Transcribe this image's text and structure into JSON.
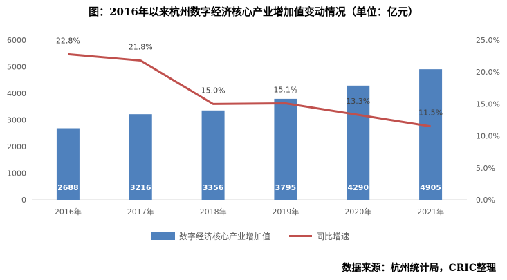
{
  "title": "图：2016年以来杭州数字经济核心产业增加值变动情况（单位：亿元）",
  "source": "数据来源：杭州统计局，CRIC整理",
  "chart_data": {
    "type": "bar",
    "categories": [
      "2016年",
      "2017年",
      "2018年",
      "2019年",
      "2020年",
      "2021年"
    ],
    "series": [
      {
        "name": "数字经济核心产业增加值",
        "type": "bar",
        "axis": "left",
        "color": "#4F81BD",
        "values": [
          2688,
          3216,
          3356,
          3795,
          4290,
          4905
        ],
        "labels": [
          "2688",
          "3216",
          "3356",
          "3795",
          "4290",
          "4905"
        ]
      },
      {
        "name": "同比增速",
        "type": "line",
        "axis": "right",
        "color": "#C0504D",
        "values": [
          22.8,
          21.8,
          15.0,
          15.1,
          13.3,
          11.5
        ],
        "labels": [
          "22.8%",
          "21.8%",
          "15.0%",
          "15.1%",
          "13.3%",
          "11.5%"
        ]
      }
    ],
    "y_left": {
      "min": 0,
      "max": 6000,
      "ticks": [
        "0",
        "1000",
        "2000",
        "3000",
        "4000",
        "5000",
        "6000"
      ]
    },
    "y_right": {
      "min": 0,
      "max": 25,
      "ticks": [
        "0.0%",
        "5.0%",
        "10.0%",
        "15.0%",
        "20.0%",
        "25.0%"
      ]
    },
    "grid": false,
    "legend_position": "bottom"
  }
}
